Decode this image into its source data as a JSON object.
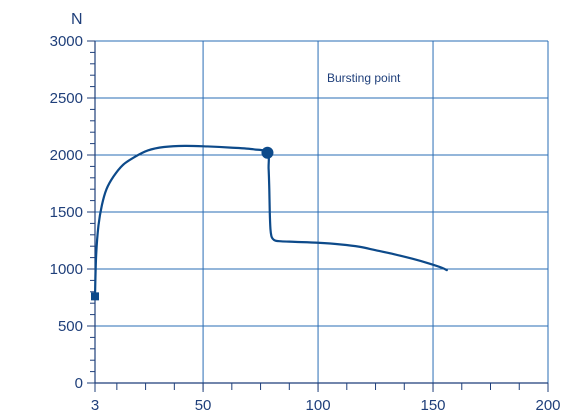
{
  "chart_data": {
    "type": "line",
    "title": "",
    "xlabel": "",
    "ylabel": "N",
    "xlim": [
      3,
      200
    ],
    "ylim": [
      0,
      3000
    ],
    "x_ticks": [
      3,
      50,
      100,
      150,
      200
    ],
    "y_ticks": [
      0,
      500,
      1000,
      1500,
      2000,
      2500,
      3000
    ],
    "grid": true,
    "series": [
      {
        "color": "#0d4a8a",
        "x": [
          3,
          3.5,
          4.5,
          6,
          8,
          11,
          15,
          20,
          26,
          33,
          42,
          52,
          62,
          72,
          78,
          78.5,
          78.8,
          79,
          79.3,
          79.7,
          80.3,
          81.5,
          84,
          90,
          100,
          110,
          118,
          125,
          133,
          141,
          148,
          154,
          156
        ],
        "y": [
          760,
          1120,
          1380,
          1560,
          1700,
          1810,
          1910,
          1980,
          2040,
          2070,
          2080,
          2075,
          2065,
          2050,
          2020,
          1880,
          1700,
          1500,
          1350,
          1290,
          1265,
          1248,
          1243,
          1238,
          1230,
          1215,
          1195,
          1165,
          1130,
          1090,
          1050,
          1010,
          990
        ]
      }
    ],
    "markers": {
      "start": {
        "x": 3,
        "y": 760,
        "shape": "square"
      },
      "burst": {
        "x": 78,
        "y": 2020,
        "shape": "circle"
      }
    },
    "annotations": [
      {
        "text": "Bursting point"
      }
    ],
    "colors": {
      "axis": "#1f3f7a",
      "grid": "#2a6db5",
      "line": "#0d4a8a",
      "text": "#1f3f7a"
    }
  }
}
